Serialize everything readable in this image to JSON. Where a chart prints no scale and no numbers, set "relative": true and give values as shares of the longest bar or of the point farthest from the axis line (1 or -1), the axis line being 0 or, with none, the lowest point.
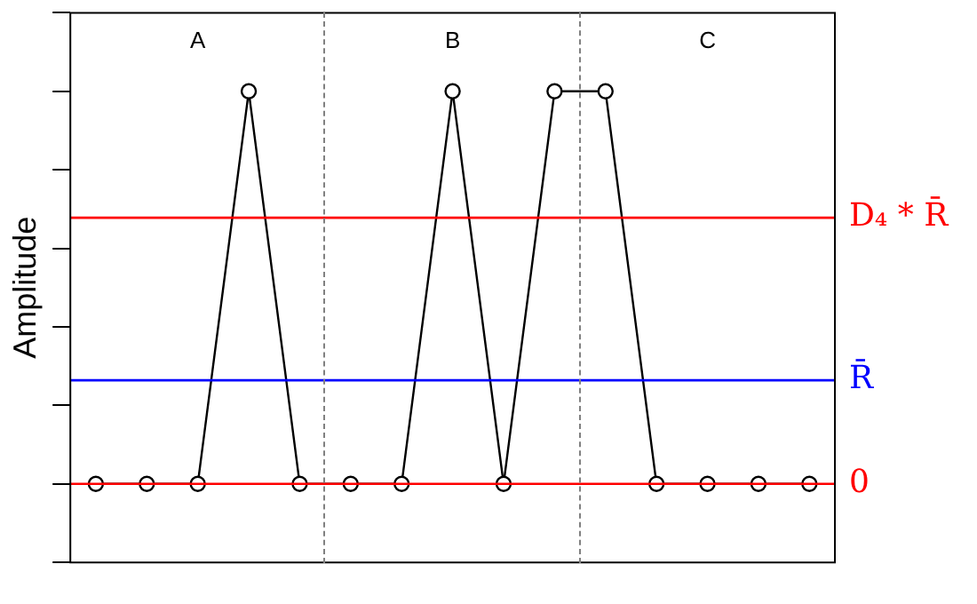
{
  "chart_data": {
    "type": "line",
    "ylabel": "Amplitude",
    "relative": true,
    "categories": [
      null,
      null,
      null,
      null,
      null,
      null,
      null,
      null,
      null,
      null,
      null,
      null,
      null,
      null,
      null
    ],
    "series": [
      {
        "color": "#000000",
        "values": [
          0,
          0,
          0,
          1,
          0,
          0,
          0,
          1,
          0,
          1,
          1,
          0,
          0,
          0,
          0
        ]
      }
    ],
    "marker": "circle",
    "line_style": "solid",
    "grid": false,
    "legend": false,
    "ref_lines": [
      {
        "axis": "y",
        "value": 0.678,
        "label": "D₄ * R̄",
        "color": "#ff0000",
        "line_style": "solid"
      },
      {
        "axis": "y",
        "value": 0.264,
        "label": "R̄",
        "color": "#0000ff",
        "line_style": "solid"
      },
      {
        "axis": "y",
        "value": 0,
        "label": "0",
        "color": "#ff0000",
        "line_style": "solid"
      }
    ],
    "annotations": [
      "A",
      "B",
      "C"
    ]
  }
}
